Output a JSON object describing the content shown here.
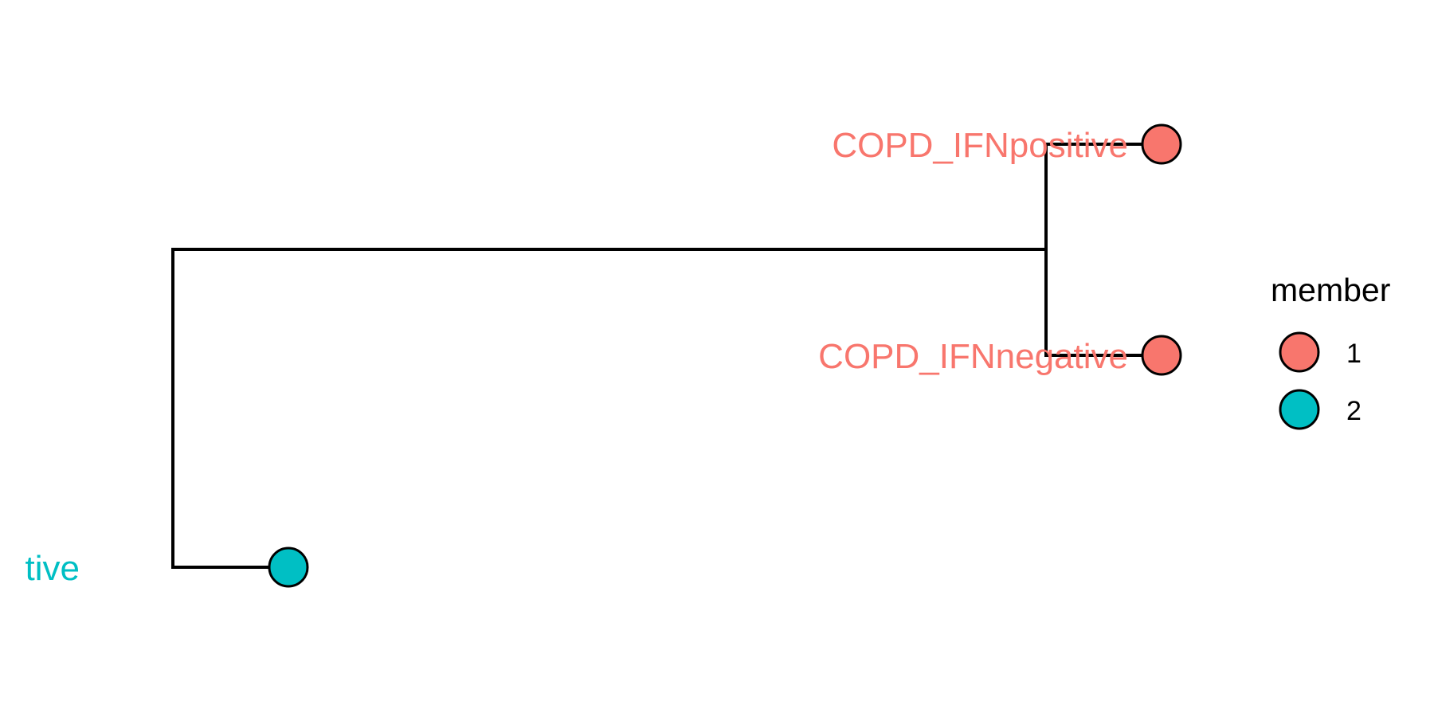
{
  "tree": {
    "tips": [
      {
        "label": "COPD_IFNpositive",
        "member": "1"
      },
      {
        "label": "COPD_IFNnegative",
        "member": "1"
      },
      {
        "label": "tive",
        "member": "2"
      }
    ]
  },
  "legend": {
    "title": "member",
    "items": [
      {
        "label": "1",
        "color": "#F8766D"
      },
      {
        "label": "2",
        "color": "#00BFC4"
      }
    ]
  },
  "colors": {
    "member_1": "#F8766D",
    "member_2": "#00BFC4",
    "branch": "#000000"
  }
}
